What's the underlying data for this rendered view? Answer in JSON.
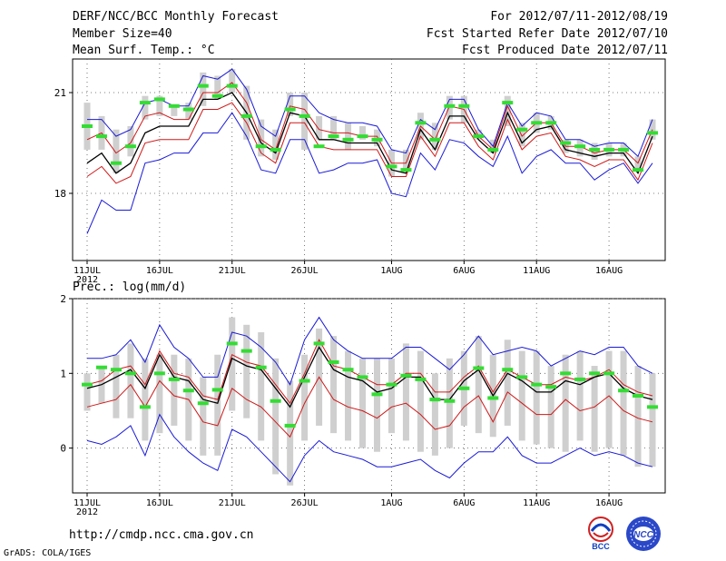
{
  "header": {
    "title": "DERF/NCC/BCC Monthly Forecast",
    "member_size": "Member Size=40",
    "period": "For 2012/07/11-2012/08/19",
    "fcst_started": "Fcst Started Refer Date 2012/07/10",
    "fcst_produced": "Fcst Produced Date 2012/07/11"
  },
  "footer": {
    "url": "http://cmdp.ncc.cma.gov.cn",
    "grads": "GrADS: COLA/IGES",
    "logo_bcc_label": "BCC",
    "logo_ncc_label": "NCC"
  },
  "colors": {
    "band": "#1a1ad8",
    "inner": "#d01818",
    "mean": "#000000",
    "box": "#cfcfcf",
    "obs": "#33dd33"
  },
  "chart_data": [
    {
      "type": "line",
      "title": "Mean Surf. Temp.: °C",
      "x_tick_labels": [
        "11JUL",
        "16JUL",
        "21JUL",
        "26JUL",
        "1AUG",
        "6AUG",
        "11AUG",
        "16AUG"
      ],
      "x_tick_days": [
        0,
        5,
        10,
        15,
        21,
        26,
        31,
        36
      ],
      "x_year_label": "2012",
      "ylim": [
        16,
        22
      ],
      "y_ticks": [
        18,
        21
      ],
      "y_tick_labels": [
        "18",
        "21"
      ],
      "x_days": [
        0,
        1,
        2,
        3,
        4,
        5,
        6,
        7,
        8,
        9,
        10,
        11,
        12,
        13,
        14,
        15,
        16,
        17,
        18,
        19,
        20,
        21,
        22,
        23,
        24,
        25,
        26,
        27,
        28,
        29,
        30,
        31,
        32,
        33,
        34,
        35,
        36,
        37,
        38,
        39
      ],
      "series": [
        {
          "name": "max",
          "values": [
            20.2,
            20.2,
            19.7,
            19.9,
            20.7,
            20.8,
            20.6,
            20.6,
            21.5,
            21.4,
            21.7,
            21.1,
            20.0,
            19.7,
            20.9,
            20.9,
            20.4,
            20.2,
            20.1,
            20.1,
            20.0,
            19.3,
            19.2,
            20.2,
            19.9,
            20.8,
            20.8,
            19.9,
            19.4,
            20.7,
            20.0,
            20.4,
            20.3,
            19.6,
            19.6,
            19.4,
            19.5,
            19.5,
            19.1,
            20.2
          ]
        },
        {
          "name": "upper",
          "values": [
            19.6,
            19.8,
            19.2,
            19.5,
            20.3,
            20.4,
            20.2,
            20.2,
            21.0,
            21.0,
            21.3,
            20.7,
            19.6,
            19.3,
            20.6,
            20.5,
            19.9,
            19.8,
            19.8,
            19.7,
            19.7,
            18.9,
            18.9,
            20.0,
            19.6,
            20.6,
            20.5,
            19.7,
            19.3,
            20.6,
            19.7,
            20.1,
            20.1,
            19.4,
            19.4,
            19.2,
            19.3,
            19.3,
            18.9,
            19.9
          ]
        },
        {
          "name": "mean",
          "values": [
            18.9,
            19.2,
            18.6,
            18.9,
            19.8,
            20.0,
            20.0,
            20.0,
            20.8,
            20.8,
            21.0,
            20.4,
            19.5,
            19.2,
            20.4,
            20.3,
            19.6,
            19.6,
            19.5,
            19.5,
            19.5,
            18.7,
            18.6,
            19.9,
            19.3,
            20.3,
            20.3,
            19.6,
            19.2,
            20.4,
            19.5,
            19.9,
            20.0,
            19.3,
            19.2,
            19.1,
            19.2,
            19.2,
            18.6,
            19.7
          ]
        },
        {
          "name": "lower",
          "values": [
            18.5,
            18.8,
            18.3,
            18.5,
            19.5,
            19.6,
            19.6,
            19.6,
            20.5,
            20.5,
            20.7,
            20.1,
            19.2,
            18.9,
            20.1,
            20.1,
            19.4,
            19.3,
            19.3,
            19.3,
            19.3,
            18.5,
            18.5,
            19.7,
            19.1,
            20.1,
            20.1,
            19.4,
            19.0,
            20.2,
            19.3,
            19.7,
            19.8,
            19.1,
            19.0,
            18.8,
            19.0,
            19.0,
            18.4,
            19.5
          ]
        },
        {
          "name": "min",
          "values": [
            16.8,
            17.8,
            17.5,
            17.5,
            18.9,
            19.0,
            19.2,
            19.2,
            19.8,
            19.8,
            20.4,
            19.7,
            18.7,
            18.6,
            19.6,
            19.6,
            18.6,
            18.7,
            18.9,
            18.9,
            19.0,
            18.0,
            17.9,
            19.2,
            18.7,
            19.6,
            19.5,
            19.1,
            18.8,
            19.7,
            18.6,
            19.1,
            19.3,
            18.9,
            18.9,
            18.4,
            18.7,
            18.9,
            18.3,
            18.9
          ]
        },
        {
          "name": "box_top",
          "values": [
            20.7,
            20.3,
            19.9,
            20.0,
            20.9,
            20.9,
            20.6,
            20.7,
            21.6,
            21.5,
            21.7,
            21.2,
            20.2,
            19.9,
            21.0,
            21.0,
            20.3,
            20.3,
            20.1,
            20.0,
            19.9,
            19.3,
            19.3,
            20.4,
            20.1,
            20.9,
            20.9,
            19.9,
            19.6,
            20.9,
            20.1,
            20.4,
            20.3,
            19.6,
            19.6,
            19.5,
            19.5,
            19.5,
            19.1,
            20.2
          ]
        },
        {
          "name": "box_bottom",
          "values": [
            19.3,
            19.3,
            18.6,
            19.1,
            20.2,
            20.3,
            20.3,
            20.2,
            20.6,
            20.8,
            21.0,
            19.6,
            19.1,
            19.0,
            20.3,
            19.3,
            19.6,
            19.6,
            19.3,
            19.6,
            19.4,
            18.5,
            18.7,
            19.6,
            19.3,
            20.2,
            20.1,
            19.6,
            19.2,
            20.0,
            19.4,
            19.8,
            19.9,
            19.2,
            19.1,
            19.0,
            19.1,
            19.1,
            18.7,
            19.6
          ]
        },
        {
          "name": "observed",
          "values": [
            20.0,
            19.7,
            18.9,
            19.4,
            20.7,
            20.8,
            20.6,
            20.5,
            21.2,
            20.9,
            21.2,
            20.3,
            19.4,
            19.3,
            20.5,
            20.3,
            19.4,
            19.7,
            19.6,
            19.7,
            19.6,
            18.8,
            18.7,
            20.1,
            19.6,
            20.6,
            20.6,
            19.7,
            19.3,
            20.7,
            19.9,
            20.1,
            20.1,
            19.5,
            19.4,
            19.3,
            19.3,
            19.3,
            18.7,
            19.8
          ]
        }
      ]
    },
    {
      "type": "line",
      "title": "Prec.: log(mm/d)",
      "x_tick_labels": [
        "11JUL",
        "16JUL",
        "21JUL",
        "26JUL",
        "1AUG",
        "6AUG",
        "11AUG",
        "16AUG"
      ],
      "x_tick_days": [
        0,
        5,
        10,
        15,
        21,
        26,
        31,
        36
      ],
      "x_year_label": "2012",
      "ylim": [
        -0.6,
        2.0
      ],
      "y_ticks": [
        0,
        1,
        2
      ],
      "y_tick_labels": [
        "0",
        "1",
        "2"
      ],
      "x_days": [
        0,
        1,
        2,
        3,
        4,
        5,
        6,
        7,
        8,
        9,
        10,
        11,
        12,
        13,
        14,
        15,
        16,
        17,
        18,
        19,
        20,
        21,
        22,
        23,
        24,
        25,
        26,
        27,
        28,
        29,
        30,
        31,
        32,
        33,
        34,
        35,
        36,
        37,
        38,
        39
      ],
      "series": [
        {
          "name": "max",
          "values": [
            1.2,
            1.2,
            1.25,
            1.45,
            1.15,
            1.65,
            1.35,
            1.2,
            0.95,
            0.95,
            1.55,
            1.5,
            1.35,
            1.15,
            0.85,
            1.45,
            1.75,
            1.45,
            1.3,
            1.2,
            1.2,
            1.2,
            1.35,
            1.35,
            1.2,
            1.05,
            1.25,
            1.5,
            1.25,
            1.3,
            1.35,
            1.3,
            1.1,
            1.2,
            1.3,
            1.25,
            1.35,
            1.35,
            1.1,
            1.0
          ]
        },
        {
          "name": "upper",
          "values": [
            0.85,
            0.9,
            1.05,
            1.1,
            0.85,
            1.3,
            1.0,
            0.95,
            0.7,
            0.65,
            1.25,
            1.15,
            1.1,
            0.85,
            0.6,
            1.0,
            1.45,
            1.1,
            1.05,
            0.95,
            0.85,
            0.85,
            1.0,
            1.0,
            0.75,
            0.75,
            0.95,
            1.1,
            0.75,
            1.05,
            0.95,
            0.85,
            0.85,
            0.95,
            0.9,
            0.95,
            1.05,
            0.85,
            0.75,
            0.7
          ]
        },
        {
          "name": "mean",
          "values": [
            0.8,
            0.85,
            0.95,
            1.05,
            0.8,
            1.25,
            0.95,
            0.9,
            0.65,
            0.6,
            1.2,
            1.1,
            1.05,
            0.8,
            0.55,
            0.95,
            1.35,
            1.05,
            0.95,
            0.9,
            0.75,
            0.8,
            0.95,
            0.95,
            0.65,
            0.65,
            0.9,
            1.05,
            0.7,
            1.0,
            0.9,
            0.75,
            0.75,
            0.9,
            0.85,
            0.95,
            1.0,
            0.8,
            0.7,
            0.65
          ]
        },
        {
          "name": "lower",
          "values": [
            0.55,
            0.6,
            0.65,
            0.85,
            0.55,
            0.9,
            0.7,
            0.65,
            0.35,
            0.3,
            0.8,
            0.65,
            0.55,
            0.35,
            0.15,
            0.6,
            0.95,
            0.65,
            0.55,
            0.5,
            0.4,
            0.55,
            0.6,
            0.45,
            0.25,
            0.3,
            0.55,
            0.7,
            0.35,
            0.75,
            0.6,
            0.45,
            0.45,
            0.65,
            0.5,
            0.55,
            0.7,
            0.5,
            0.4,
            0.35
          ]
        },
        {
          "name": "min",
          "values": [
            0.1,
            0.05,
            0.15,
            0.3,
            -0.1,
            0.45,
            0.15,
            -0.05,
            -0.2,
            -0.3,
            0.25,
            0.15,
            -0.05,
            -0.25,
            -0.45,
            -0.1,
            0.1,
            -0.05,
            -0.1,
            -0.15,
            -0.25,
            -0.25,
            -0.2,
            -0.15,
            -0.3,
            -0.4,
            -0.2,
            -0.05,
            -0.05,
            0.15,
            -0.1,
            -0.2,
            -0.2,
            -0.1,
            0.0,
            -0.1,
            -0.05,
            -0.1,
            -0.2,
            -0.25
          ]
        },
        {
          "name": "box_top",
          "values": [
            1.0,
            1.1,
            1.25,
            1.4,
            1.2,
            1.25,
            1.25,
            1.2,
            0.95,
            1.25,
            1.75,
            1.65,
            1.55,
            1.2,
            0.9,
            1.25,
            1.6,
            1.5,
            1.3,
            1.2,
            1.2,
            1.2,
            1.4,
            1.3,
            1.0,
            1.2,
            1.3,
            1.5,
            1.25,
            1.45,
            1.3,
            1.3,
            1.1,
            1.25,
            1.3,
            1.1,
            1.3,
            1.3,
            1.1,
            1.0
          ]
        },
        {
          "name": "box_bottom",
          "values": [
            0.5,
            0.6,
            0.4,
            0.4,
            0.1,
            0.2,
            0.3,
            0.1,
            -0.1,
            -0.1,
            0.5,
            0.4,
            0.1,
            -0.35,
            -0.5,
            0.1,
            0.3,
            0.2,
            0.1,
            0.0,
            -0.05,
            0.2,
            0.1,
            -0.05,
            -0.1,
            0.0,
            0.3,
            0.2,
            0.15,
            0.3,
            0.1,
            0.05,
            0.0,
            -0.05,
            0.1,
            -0.05,
            0.0,
            -0.1,
            -0.25,
            -0.25
          ]
        },
        {
          "name": "observed",
          "values": [
            0.85,
            1.08,
            1.05,
            1.0,
            0.55,
            1.0,
            0.92,
            0.77,
            0.6,
            0.78,
            1.4,
            1.3,
            1.08,
            0.63,
            0.3,
            0.9,
            1.4,
            1.15,
            1.05,
            0.95,
            0.72,
            0.85,
            0.97,
            0.92,
            0.65,
            0.63,
            0.8,
            1.07,
            0.67,
            1.05,
            0.95,
            0.85,
            0.82,
            1.0,
            0.92,
            1.0,
            1.0,
            0.77,
            0.7,
            0.55
          ]
        }
      ]
    }
  ]
}
